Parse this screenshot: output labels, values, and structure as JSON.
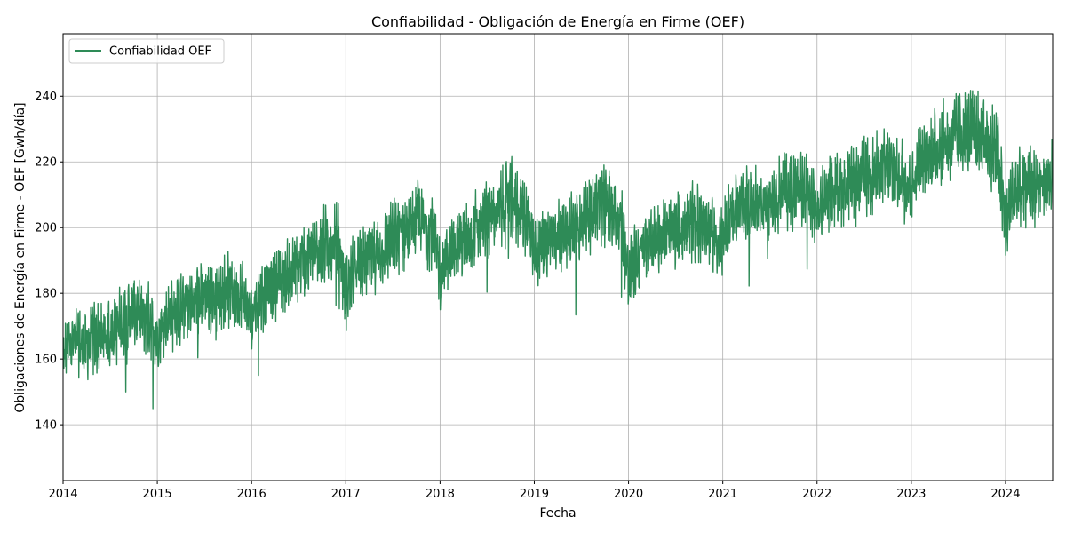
{
  "chart_data": {
    "type": "line",
    "title": "Confiabilidad - Obligación de Energía en Firme (OEF)",
    "xlabel": "Fecha",
    "ylabel": "Obligaciones de Energía en Firme - OEF [Gwh/día]",
    "xlim": [
      2014.0,
      2024.5
    ],
    "ylim": [
      123,
      259
    ],
    "x_ticks": [
      "2014",
      "2015",
      "2016",
      "2017",
      "2018",
      "2019",
      "2020",
      "2021",
      "2022",
      "2023",
      "2024"
    ],
    "y_ticks": [
      140,
      160,
      180,
      200,
      220,
      240
    ],
    "grid": true,
    "legend_position": "top-left",
    "series": [
      {
        "name": "Confiabilidad OEF",
        "color": "#2e8b57",
        "x": [
          2014.0,
          2014.08,
          2014.17,
          2014.25,
          2014.33,
          2014.42,
          2014.5,
          2014.58,
          2014.67,
          2014.75,
          2014.83,
          2014.92,
          2015.0,
          2015.08,
          2015.17,
          2015.25,
          2015.33,
          2015.42,
          2015.5,
          2015.58,
          2015.67,
          2015.75,
          2015.83,
          2015.92,
          2016.0,
          2016.08,
          2016.17,
          2016.25,
          2016.33,
          2016.42,
          2016.5,
          2016.58,
          2016.67,
          2016.75,
          2016.83,
          2016.92,
          2017.0,
          2017.08,
          2017.17,
          2017.25,
          2017.33,
          2017.42,
          2017.5,
          2017.58,
          2017.67,
          2017.75,
          2017.83,
          2017.92,
          2018.0,
          2018.08,
          2018.17,
          2018.25,
          2018.33,
          2018.42,
          2018.5,
          2018.58,
          2018.67,
          2018.75,
          2018.83,
          2018.92,
          2019.0,
          2019.08,
          2019.17,
          2019.25,
          2019.33,
          2019.42,
          2019.5,
          2019.58,
          2019.67,
          2019.75,
          2019.83,
          2019.92,
          2020.0,
          2020.08,
          2020.17,
          2020.25,
          2020.33,
          2020.42,
          2020.5,
          2020.58,
          2020.67,
          2020.75,
          2020.83,
          2020.92,
          2021.0,
          2021.08,
          2021.17,
          2021.25,
          2021.33,
          2021.42,
          2021.5,
          2021.58,
          2021.67,
          2021.75,
          2021.83,
          2021.92,
          2022.0,
          2022.08,
          2022.17,
          2022.25,
          2022.33,
          2022.42,
          2022.5,
          2022.58,
          2022.67,
          2022.75,
          2022.83,
          2022.92,
          2023.0,
          2023.08,
          2023.17,
          2023.25,
          2023.33,
          2023.42,
          2023.5,
          2023.58,
          2023.67,
          2023.75,
          2023.83,
          2023.92,
          2024.0,
          2024.08,
          2024.17,
          2024.25,
          2024.33,
          2024.42,
          2024.5
        ],
        "y": [
          160,
          166,
          165,
          164,
          166,
          167,
          168,
          170,
          172,
          174,
          173,
          172,
          166,
          171,
          174,
          175,
          177,
          178,
          178,
          179,
          180,
          181,
          180,
          179,
          172,
          178,
          181,
          183,
          185,
          186,
          188,
          190,
          192,
          194,
          195,
          195,
          180,
          186,
          189,
          190,
          192,
          194,
          196,
          198,
          200,
          202,
          201,
          199,
          186,
          192,
          195,
          196,
          198,
          200,
          202,
          204,
          206,
          208,
          206,
          203,
          190,
          195,
          197,
          198,
          199,
          200,
          202,
          204,
          206,
          207,
          205,
          202,
          185,
          190,
          194,
          196,
          197,
          198,
          199,
          200,
          201,
          202,
          200,
          197,
          195,
          204,
          206,
          207,
          207,
          208,
          209,
          210,
          211,
          212,
          211,
          209,
          204,
          210,
          211,
          212,
          212,
          213,
          215,
          216,
          217,
          218,
          217,
          215,
          212,
          219,
          222,
          224,
          226,
          227,
          228,
          229,
          229,
          228,
          226,
          222,
          200,
          210,
          212,
          213,
          213,
          214,
          215
        ],
        "band": [
          10,
          10,
          10,
          10,
          11,
          11,
          11,
          11,
          11,
          11,
          11,
          11,
          9,
          10,
          11,
          11,
          11,
          11,
          11,
          11,
          11,
          11,
          11,
          11,
          10,
          11,
          11,
          11,
          11,
          11,
          11,
          12,
          12,
          12,
          12,
          12,
          11,
          11,
          11,
          11,
          11,
          11,
          12,
          12,
          12,
          12,
          12,
          12,
          11,
          11,
          11,
          11,
          12,
          12,
          12,
          12,
          12,
          13,
          12,
          12,
          11,
          11,
          11,
          11,
          11,
          11,
          12,
          12,
          12,
          12,
          12,
          12,
          12,
          11,
          11,
          11,
          11,
          11,
          11,
          11,
          12,
          12,
          12,
          12,
          11,
          11,
          11,
          11,
          11,
          11,
          11,
          11,
          12,
          12,
          12,
          12,
          11,
          11,
          11,
          11,
          12,
          12,
          12,
          12,
          12,
          12,
          12,
          12,
          12,
          12,
          12,
          12,
          13,
          13,
          13,
          13,
          13,
          13,
          13,
          13,
          12,
          12,
          12,
          12,
          12,
          12,
          12
        ]
      }
    ]
  }
}
